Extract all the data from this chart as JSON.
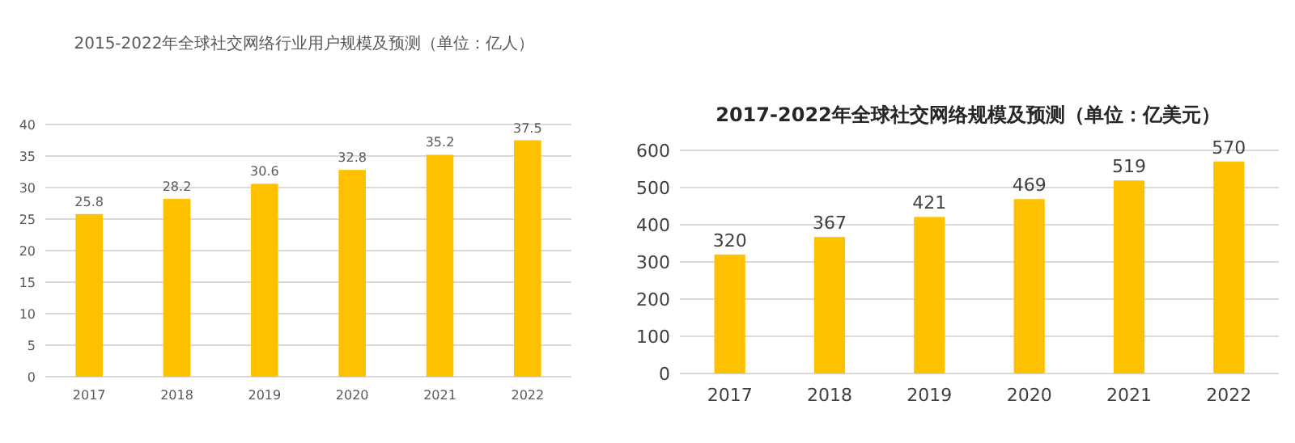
{
  "chart_data": [
    {
      "type": "bar",
      "title": "2015-2022年全球社交网络行业用户规模及预测（单位：亿人）",
      "categories": [
        "2017",
        "2018",
        "2019",
        "2020",
        "2021",
        "2022"
      ],
      "values": [
        25.8,
        28.2,
        30.6,
        32.8,
        35.2,
        37.5
      ],
      "color": "#ffc000",
      "ylim": [
        0,
        40
      ],
      "yticks": [
        0,
        5,
        10,
        15,
        20,
        25,
        30,
        35,
        40
      ],
      "grid": "y",
      "data_labels": true
    },
    {
      "type": "bar",
      "title": "2017-2022年全球社交网络规模及预测（单位：亿美元）",
      "categories": [
        "2017",
        "2018",
        "2019",
        "2020",
        "2021",
        "2022"
      ],
      "values": [
        320,
        367,
        421,
        469,
        519,
        570
      ],
      "color": "#ffc000",
      "ylim": [
        0,
        600
      ],
      "yticks": [
        0,
        100,
        200,
        300,
        400,
        500,
        600
      ],
      "grid": "y",
      "data_labels": true
    }
  ]
}
